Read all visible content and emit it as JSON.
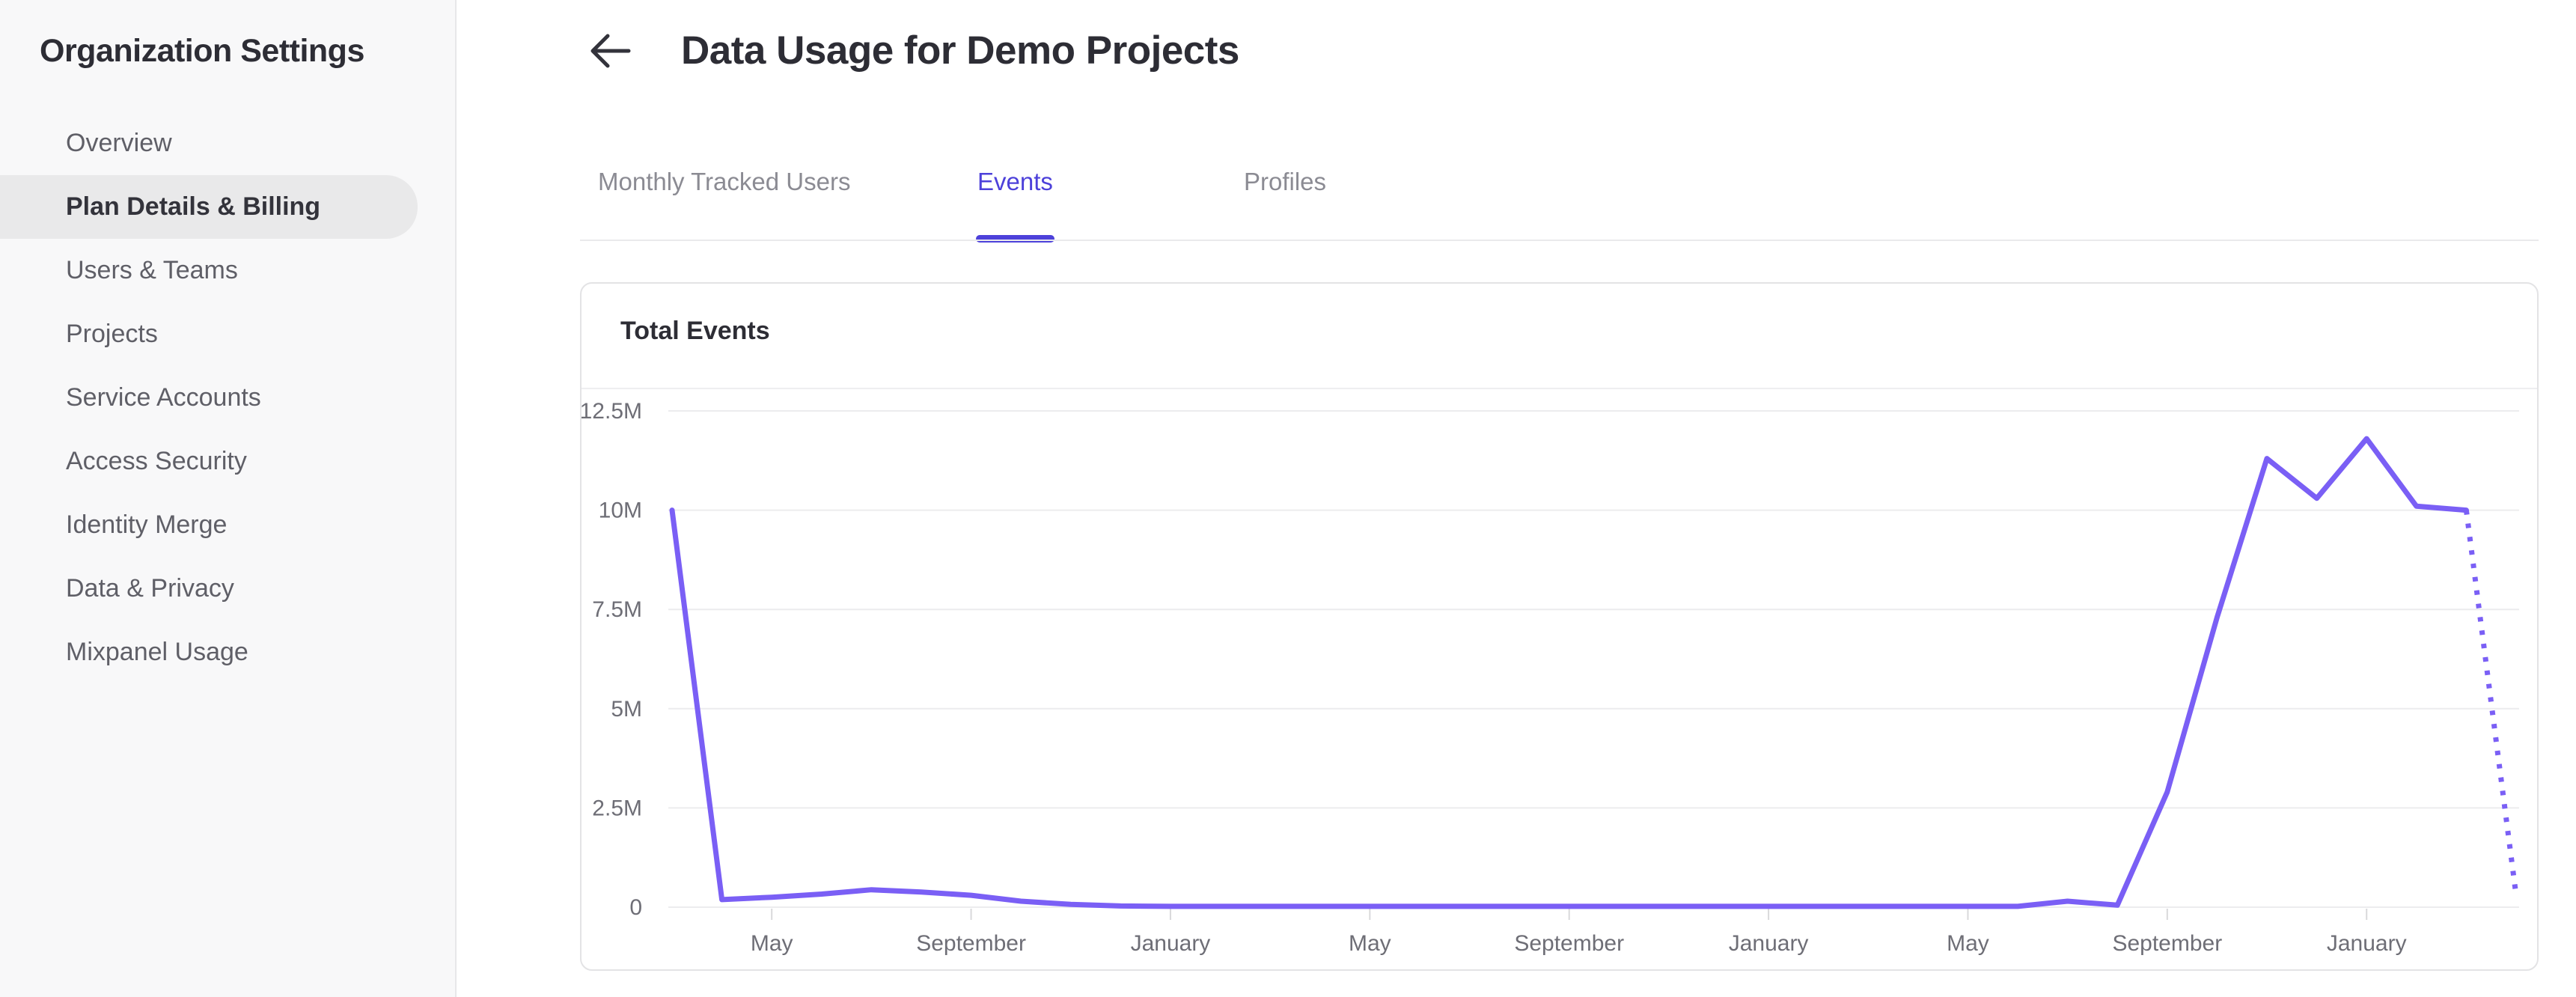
{
  "sidebar": {
    "title": "Organization Settings",
    "items": [
      {
        "label": "Overview",
        "selected": false
      },
      {
        "label": "Plan Details & Billing",
        "selected": true
      },
      {
        "label": "Users & Teams",
        "selected": false
      },
      {
        "label": "Projects",
        "selected": false
      },
      {
        "label": "Service Accounts",
        "selected": false
      },
      {
        "label": "Access Security",
        "selected": false
      },
      {
        "label": "Identity Merge",
        "selected": false
      },
      {
        "label": "Data & Privacy",
        "selected": false
      },
      {
        "label": "Mixpanel Usage",
        "selected": false
      }
    ]
  },
  "header": {
    "back_icon": "arrow-left",
    "title": "Data Usage for Demo Projects"
  },
  "tabs": [
    {
      "label": "Monthly Tracked Users",
      "active": false
    },
    {
      "label": "Events",
      "active": true
    },
    {
      "label": "Profiles",
      "active": false
    }
  ],
  "card": {
    "title": "Total Events"
  },
  "colors": {
    "accent": "#4d41da",
    "line": "#7a5ff5",
    "grid": "#ececee",
    "tick": "#d9d9db",
    "axis_text": "#6e6e76",
    "sidebar_selected_bg": "#e9e9ea"
  },
  "chart_data": {
    "type": "line",
    "title": "Total Events",
    "series_name": "Total Events",
    "unit": "events per month (millions)",
    "grid": "horizontal",
    "legend": "none",
    "ylim_millions": [
      0,
      12.5
    ],
    "y_tick_labels_top_down": [
      "12.5M",
      "10M",
      "7.5M",
      "5M",
      "2.5M",
      "0"
    ],
    "y_tick_values_millions_top_down": [
      12.5,
      10,
      7.5,
      5,
      2.5,
      0
    ],
    "values_millions": [
      10,
      0.19,
      0.25,
      0.33,
      0.44,
      0.38,
      0.3,
      0.15,
      0.07,
      0.03,
      0.02,
      0.02,
      0.02,
      0.02,
      0.02,
      0.02,
      0.02,
      0.02,
      0.02,
      0.02,
      0.02,
      0.02,
      0.02,
      0.02,
      0.02,
      0.02,
      0.02,
      0.02,
      0.15,
      0.05,
      2.9,
      7.3,
      11.3,
      10.3,
      11.8,
      10.1,
      10,
      0.3
    ],
    "x_tick_labels": [
      {
        "point_index": 2,
        "label": "May"
      },
      {
        "point_index": 6,
        "label": "September"
      },
      {
        "point_index": 10,
        "label": "January"
      },
      {
        "point_index": 14,
        "label": "May"
      },
      {
        "point_index": 18,
        "label": "September"
      },
      {
        "point_index": 22,
        "label": "January"
      },
      {
        "point_index": 26,
        "label": "May"
      },
      {
        "point_index": 30,
        "label": "September"
      },
      {
        "point_index": 34,
        "label": "January"
      }
    ],
    "projected_dashed_from_index": 36
  }
}
